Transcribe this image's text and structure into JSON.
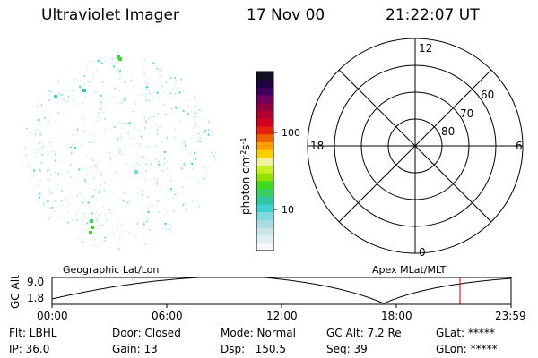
{
  "header": {
    "instrument": "Ultraviolet Imager",
    "date": "17 Nov 00",
    "time": "21:22:07 UT"
  },
  "colorbar": {
    "label_html": "photon cm<tspan baseline-shift=\"super\" font-size=\"8\">-2</tspan>s<tspan baseline-shift=\"super\" font-size=\"8\">-1</tspan>",
    "ticks": [
      "100",
      "10"
    ],
    "colors": [
      "#f4f8f8",
      "#e0eef0",
      "#c8e6e8",
      "#a8dce0",
      "#80d8dc",
      "#40d0d0",
      "#30c8a0",
      "#38d060",
      "#40d820",
      "#90e000",
      "#c8f020",
      "#f0f0a0",
      "#f8d000",
      "#f8a000",
      "#f06000",
      "#e82010",
      "#d00020",
      "#b00030",
      "#900040",
      "#700060",
      "#400060",
      "#200040",
      "#101020"
    ]
  },
  "polar": {
    "labels": {
      "top": "12",
      "left": "18",
      "right": "6",
      "bottom": "0"
    },
    "lat_labels": [
      "60",
      "70",
      "80"
    ]
  },
  "timeline": {
    "left_title": "Geographic Lat/Lon",
    "right_title": "Apex MLat/MLT",
    "y_axis_label": "GC Alt",
    "y_ticks": [
      "9.0",
      "1.8"
    ],
    "x_ticks": [
      "00:00",
      "06:00",
      "12:00",
      "18:00",
      "23:59"
    ],
    "current_time_marker_color": "#cc0000"
  },
  "status": {
    "row1": [
      {
        "key": "Flt",
        "val": "Flt: LBHL"
      },
      {
        "key": "Door",
        "val": "Door: Closed"
      },
      {
        "key": "Mode",
        "val": "Mode: Normal"
      },
      {
        "key": "GCAlt",
        "val": "GC Alt: 7.2 Re"
      },
      {
        "key": "GLat",
        "val": "GLat: *****"
      }
    ],
    "row2": [
      {
        "key": "IP",
        "val": "IP: 36.0"
      },
      {
        "key": "Gain",
        "val": "Gain: 13"
      },
      {
        "key": "Dsp",
        "val": "Dsp:   150.5"
      },
      {
        "key": "Seq",
        "val": "Seq: 39"
      },
      {
        "key": "GLon",
        "val": "GLon: *****"
      }
    ]
  }
}
